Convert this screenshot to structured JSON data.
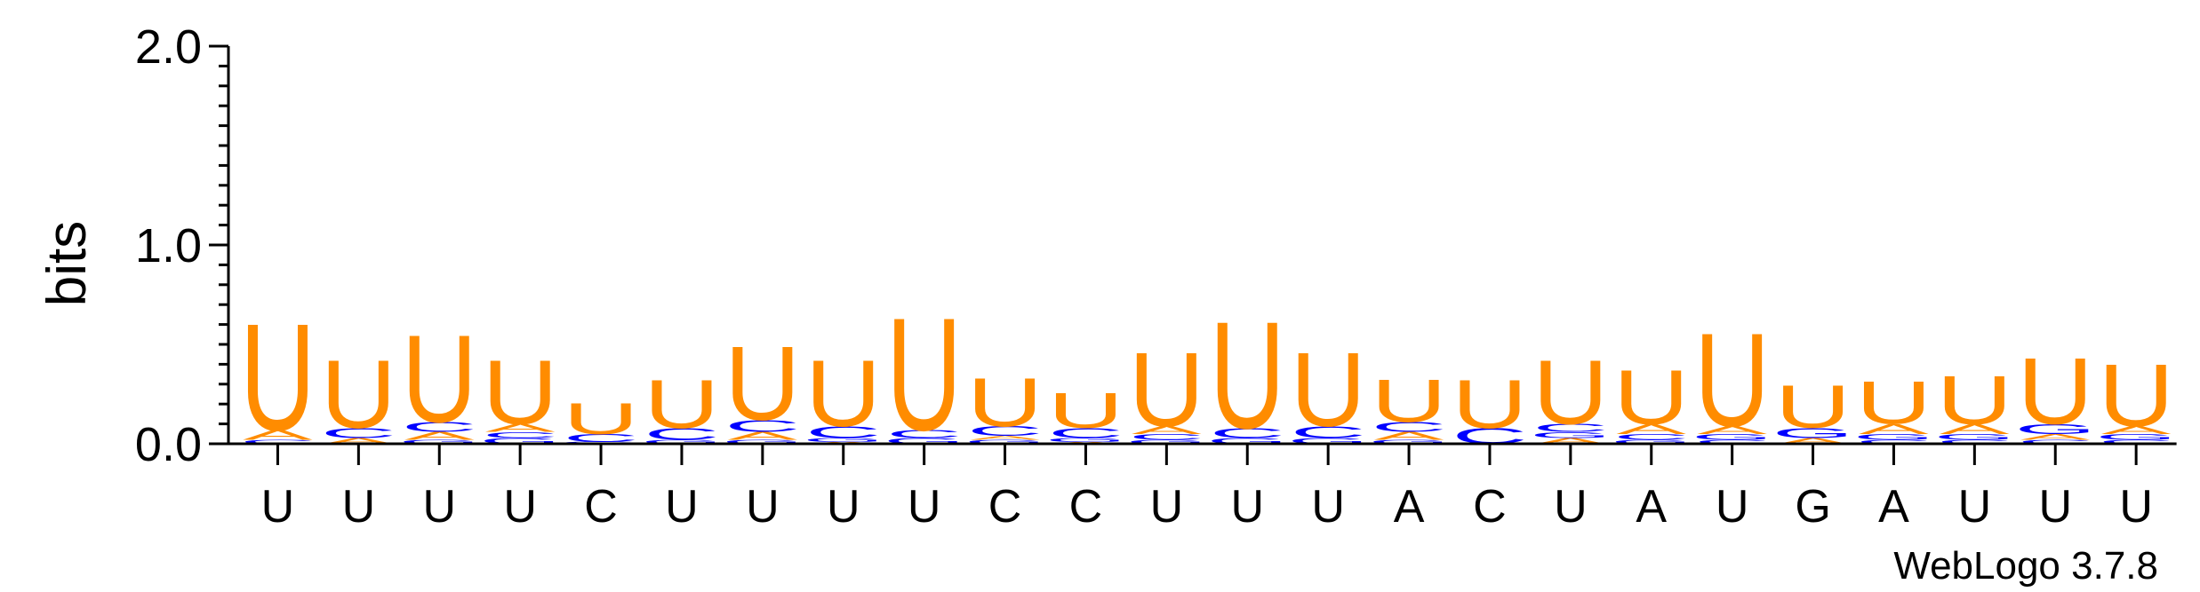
{
  "chart_data": {
    "type": "sequence-logo",
    "ylabel": "bits",
    "ylim": [
      0,
      2
    ],
    "yticks": [
      "0.0",
      "1.0",
      "2.0"
    ],
    "colors": {
      "U": "#ff8c00",
      "A": "#ff8c00",
      "C": "#0000ff",
      "G": "#0000ff"
    },
    "positions": [
      {
        "consensus": "U",
        "stack": [
          {
            "l": "U",
            "h": 0.55
          },
          {
            "l": "A",
            "h": 0.05
          },
          {
            "l": "C",
            "h": 0.02
          }
        ]
      },
      {
        "consensus": "U",
        "stack": [
          {
            "l": "U",
            "h": 0.35
          },
          {
            "l": "C",
            "h": 0.05
          },
          {
            "l": "A",
            "h": 0.03
          }
        ]
      },
      {
        "consensus": "U",
        "stack": [
          {
            "l": "U",
            "h": 0.45
          },
          {
            "l": "C",
            "h": 0.05
          },
          {
            "l": "A",
            "h": 0.04
          },
          {
            "l": "G",
            "h": 0.02
          }
        ]
      },
      {
        "consensus": "U",
        "stack": [
          {
            "l": "U",
            "h": 0.33
          },
          {
            "l": "A",
            "h": 0.04
          },
          {
            "l": "G",
            "h": 0.03
          },
          {
            "l": "C",
            "h": 0.03
          }
        ]
      },
      {
        "consensus": "C",
        "stack": [
          {
            "l": "U",
            "h": 0.16
          },
          {
            "l": "C",
            "h": 0.04
          },
          {
            "l": "G",
            "h": 0.01
          }
        ]
      },
      {
        "consensus": "U",
        "stack": [
          {
            "l": "U",
            "h": 0.25
          },
          {
            "l": "C",
            "h": 0.06
          },
          {
            "l": "G",
            "h": 0.02
          }
        ]
      },
      {
        "consensus": "U",
        "stack": [
          {
            "l": "U",
            "h": 0.38
          },
          {
            "l": "C",
            "h": 0.06
          },
          {
            "l": "A",
            "h": 0.04
          },
          {
            "l": "G",
            "h": 0.02
          }
        ]
      },
      {
        "consensus": "U",
        "stack": [
          {
            "l": "U",
            "h": 0.34
          },
          {
            "l": "C",
            "h": 0.06
          },
          {
            "l": "G",
            "h": 0.02
          },
          {
            "l": "A",
            "h": 0.01
          }
        ]
      },
      {
        "consensus": "U",
        "stack": [
          {
            "l": "U",
            "h": 0.58
          },
          {
            "l": "C",
            "h": 0.04
          },
          {
            "l": "G",
            "h": 0.03
          }
        ]
      },
      {
        "consensus": "C",
        "stack": [
          {
            "l": "U",
            "h": 0.25
          },
          {
            "l": "C",
            "h": 0.05
          },
          {
            "l": "G",
            "h": 0.02
          },
          {
            "l": "A",
            "h": 0.02
          }
        ]
      },
      {
        "consensus": "C",
        "stack": [
          {
            "l": "U",
            "h": 0.18
          },
          {
            "l": "C",
            "h": 0.05
          },
          {
            "l": "G",
            "h": 0.02
          },
          {
            "l": "A",
            "h": 0.01
          }
        ]
      },
      {
        "consensus": "U",
        "stack": [
          {
            "l": "U",
            "h": 0.38
          },
          {
            "l": "A",
            "h": 0.04
          },
          {
            "l": "C",
            "h": 0.03
          },
          {
            "l": "G",
            "h": 0.02
          }
        ]
      },
      {
        "consensus": "U",
        "stack": [
          {
            "l": "U",
            "h": 0.55
          },
          {
            "l": "C",
            "h": 0.05
          },
          {
            "l": "G",
            "h": 0.03
          }
        ]
      },
      {
        "consensus": "U",
        "stack": [
          {
            "l": "U",
            "h": 0.38
          },
          {
            "l": "C",
            "h": 0.06
          },
          {
            "l": "G",
            "h": 0.03
          }
        ]
      },
      {
        "consensus": "A",
        "stack": [
          {
            "l": "U",
            "h": 0.22
          },
          {
            "l": "C",
            "h": 0.05
          },
          {
            "l": "A",
            "h": 0.04
          },
          {
            "l": "G",
            "h": 0.02
          }
        ]
      },
      {
        "consensus": "C",
        "stack": [
          {
            "l": "U",
            "h": 0.25
          },
          {
            "l": "C",
            "h": 0.08
          }
        ]
      },
      {
        "consensus": "U",
        "stack": [
          {
            "l": "U",
            "h": 0.33
          },
          {
            "l": "C",
            "h": 0.04
          },
          {
            "l": "A",
            "h": 0.03
          },
          {
            "l": "G",
            "h": 0.03
          }
        ]
      },
      {
        "consensus": "A",
        "stack": [
          {
            "l": "U",
            "h": 0.28
          },
          {
            "l": "A",
            "h": 0.05
          },
          {
            "l": "C",
            "h": 0.03
          },
          {
            "l": "G",
            "h": 0.02
          }
        ]
      },
      {
        "consensus": "U",
        "stack": [
          {
            "l": "U",
            "h": 0.48
          },
          {
            "l": "A",
            "h": 0.04
          },
          {
            "l": "G",
            "h": 0.03
          },
          {
            "l": "C",
            "h": 0.02
          }
        ]
      },
      {
        "consensus": "G",
        "stack": [
          {
            "l": "U",
            "h": 0.22
          },
          {
            "l": "G",
            "h": 0.05
          },
          {
            "l": "A",
            "h": 0.03
          }
        ]
      },
      {
        "consensus": "A",
        "stack": [
          {
            "l": "U",
            "h": 0.22
          },
          {
            "l": "A",
            "h": 0.05
          },
          {
            "l": "G",
            "h": 0.03
          },
          {
            "l": "C",
            "h": 0.02
          }
        ]
      },
      {
        "consensus": "U",
        "stack": [
          {
            "l": "U",
            "h": 0.25
          },
          {
            "l": "A",
            "h": 0.05
          },
          {
            "l": "G",
            "h": 0.03
          },
          {
            "l": "C",
            "h": 0.02
          }
        ]
      },
      {
        "consensus": "U",
        "stack": [
          {
            "l": "U",
            "h": 0.34
          },
          {
            "l": "G",
            "h": 0.05
          },
          {
            "l": "A",
            "h": 0.03
          },
          {
            "l": "C",
            "h": 0.02
          }
        ]
      },
      {
        "consensus": "U",
        "stack": [
          {
            "l": "U",
            "h": 0.32
          },
          {
            "l": "A",
            "h": 0.04
          },
          {
            "l": "G",
            "h": 0.03
          },
          {
            "l": "C",
            "h": 0.02
          }
        ]
      }
    ]
  },
  "credit": "WebLogo 3.7.8"
}
